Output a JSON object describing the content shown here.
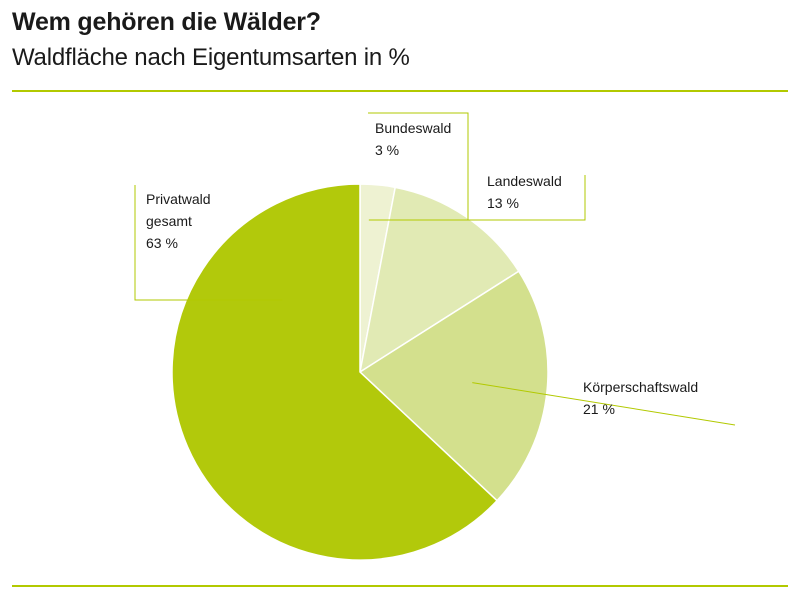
{
  "title": "Wem gehören die Wälder?",
  "subtitle": "Waldfläche nach Eigentumsarten in %",
  "colors": {
    "rule": "#b2c900",
    "leader": "#b2c900",
    "slice_border": "#ffffff"
  },
  "chart_data": {
    "type": "pie",
    "title": "Wem gehören die Wälder?",
    "subtitle": "Waldfläche nach Eigentumsarten in %",
    "unit": "%",
    "slices": [
      {
        "label": "Bundeswald",
        "label_lines": [
          "Bundeswald"
        ],
        "value": 3,
        "value_text": "3 %",
        "color": "#eef2d2"
      },
      {
        "label": "Landeswald",
        "label_lines": [
          "Landeswald"
        ],
        "value": 13,
        "value_text": "13 %",
        "color": "#e1eab4"
      },
      {
        "label": "Körperschaftswald",
        "label_lines": [
          "Körperschaftswald"
        ],
        "value": 21,
        "value_text": "21 %",
        "color": "#d3e08d"
      },
      {
        "label": "Privatwald gesamt",
        "label_lines": [
          "Privatwald",
          "gesamt"
        ],
        "value": 63,
        "value_text": "63 %",
        "color": "#b2c90b"
      }
    ]
  }
}
